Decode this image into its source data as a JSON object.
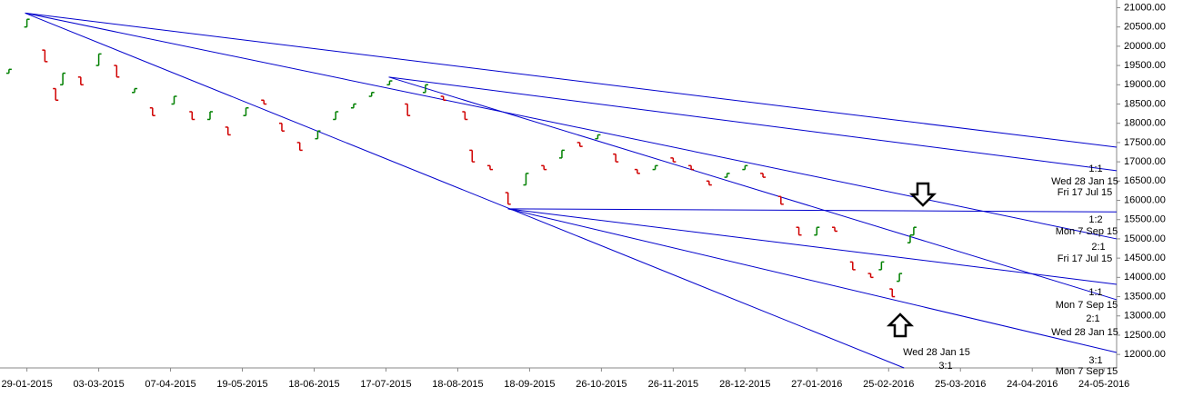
{
  "chart_data": {
    "type": "ohlc",
    "x": [
      -5,
      0,
      5,
      8,
      10,
      15,
      20,
      25,
      30,
      35,
      41,
      46,
      51,
      56,
      61,
      66,
      71,
      76,
      81,
      86,
      91,
      96,
      101,
      106,
      111,
      116,
      122,
      124,
      129,
      134,
      139,
      144,
      149,
      154,
      159,
      164,
      170,
      175,
      180,
      185,
      190,
      195,
      200,
      205,
      210,
      215,
      220,
      225,
      230,
      235,
      238,
      241,
      243,
      246,
      247
    ],
    "open": [
      19300,
      20500,
      19900,
      18900,
      19000,
      19200,
      19500,
      19500,
      18800,
      18400,
      18500,
      18300,
      18100,
      17900,
      18200,
      18600,
      18000,
      17500,
      17600,
      18100,
      18400,
      18700,
      19000,
      18500,
      18800,
      18700,
      18300,
      17300,
      16900,
      16200,
      16400,
      16900,
      17100,
      17500,
      17600,
      17200,
      16800,
      16800,
      17100,
      16900,
      16500,
      16600,
      16800,
      16700,
      16100,
      15300,
      15100,
      15300,
      14400,
      14100,
      14200,
      13700,
      13900,
      14900,
      15100
    ],
    "close": [
      19400,
      20700,
      19600,
      18600,
      19300,
      19000,
      19800,
      19200,
      18900,
      18200,
      18700,
      18100,
      18300,
      17700,
      18400,
      18500,
      17800,
      17300,
      17800,
      18300,
      18500,
      18800,
      19100,
      18200,
      19000,
      18600,
      18100,
      17000,
      16800,
      15900,
      16700,
      16800,
      17300,
      17400,
      17700,
      17000,
      16700,
      16900,
      17000,
      16800,
      16400,
      16700,
      16900,
      16600,
      15900,
      15100,
      15300,
      15200,
      14200,
      14000,
      14400,
      13500,
      14100,
      15100,
      15300
    ],
    "up_color": "#008000",
    "down_color": "#d00000",
    "line_color": "#0000cc",
    "xlim": [
      -7.5,
      303.5
    ],
    "xticks": [
      {
        "value": 0,
        "label": "29-01-2015"
      },
      {
        "value": 20,
        "label": "03-03-2015"
      },
      {
        "value": 40,
        "label": "07-04-2015"
      },
      {
        "value": 60,
        "label": "19-05-2015"
      },
      {
        "value": 80,
        "label": "18-06-2015"
      },
      {
        "value": 100,
        "label": "17-07-2015"
      },
      {
        "value": 120,
        "label": "18-08-2015"
      },
      {
        "value": 140,
        "label": "18-09-2015"
      },
      {
        "value": 160,
        "label": "26-10-2015"
      },
      {
        "value": 180,
        "label": "26-11-2015"
      },
      {
        "value": 200,
        "label": "28-12-2015"
      },
      {
        "value": 220,
        "label": "27-01-2016"
      },
      {
        "value": 240,
        "label": "25-02-2016"
      },
      {
        "value": 260,
        "label": "25-03-2016"
      },
      {
        "value": 280,
        "label": "24-04-2016"
      },
      {
        "value": 300,
        "label": "24-05-2016"
      }
    ],
    "ylim": [
      11650,
      21200
    ],
    "yticks": [
      {
        "value": 12000,
        "label": "12000.00"
      },
      {
        "value": 12500,
        "label": "12500.00"
      },
      {
        "value": 13000,
        "label": "13000.00"
      },
      {
        "value": 13500,
        "label": "13500.00"
      },
      {
        "value": 14000,
        "label": "14000.00"
      },
      {
        "value": 14500,
        "label": "14500.00"
      },
      {
        "value": 15000,
        "label": "15000.00"
      },
      {
        "value": 15500,
        "label": "15500.00"
      },
      {
        "value": 16000,
        "label": "16000.00"
      },
      {
        "value": 16500,
        "label": "16500.00"
      },
      {
        "value": 17000,
        "label": "17000.00"
      },
      {
        "value": 17500,
        "label": "17500.00"
      },
      {
        "value": 18000,
        "label": "18000.00"
      },
      {
        "value": 18500,
        "label": "18500.00"
      },
      {
        "value": 19000,
        "label": "19000.00"
      },
      {
        "value": 19500,
        "label": "19500.00"
      },
      {
        "value": 20000,
        "label": "20000.00"
      },
      {
        "value": 20500,
        "label": "20500.00"
      },
      {
        "value": 21000,
        "label": "21000.00"
      }
    ],
    "gann_lines": [
      {
        "from": [
          -0.5,
          20860
        ],
        "to": [
          303.5,
          17380
        ]
      },
      {
        "from": [
          100.8,
          19200
        ],
        "to": [
          303.5,
          16770
        ]
      },
      {
        "from": [
          -0.5,
          20860
        ],
        "to": [
          303.5,
          15000
        ]
      },
      {
        "from": [
          -0.5,
          20860
        ],
        "to": [
          244.3,
          11650
        ]
      },
      {
        "from": [
          100.8,
          19200
        ],
        "to": [
          303.5,
          13420
        ]
      },
      {
        "from": [
          134,
          15780
        ],
        "to": [
          303.5,
          15700
        ]
      },
      {
        "from": [
          134,
          15780
        ],
        "to": [
          303.5,
          13820
        ]
      },
      {
        "from": [
          134,
          15780
        ],
        "to": [
          303.5,
          12050
        ]
      }
    ],
    "annotations": [
      "1:1",
      "Wed 28 Jan 15",
      "Fri 17 Jul 15",
      "1:2",
      "Mon 7 Sep 15",
      "2:1",
      "Fri 17 Jul 15",
      "1:1",
      "Mon 7 Sep 15",
      "2:1",
      "Wed 28 Jan 15",
      "Wed 28 Jan 15",
      "3:1",
      "3:1",
      "Mon 7 Sep 15"
    ]
  }
}
